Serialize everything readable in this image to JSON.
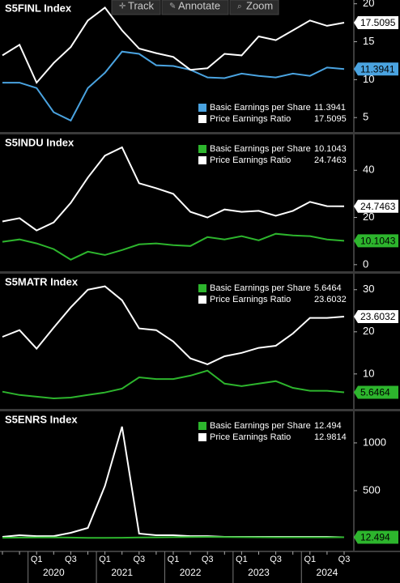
{
  "toolbar": [
    "Track",
    "Annotate",
    "Zoom"
  ],
  "x_axis": {
    "categories": [
      null,
      null,
      "Q1",
      null,
      "Q3",
      null,
      "Q1",
      null,
      "Q3",
      null,
      "Q1",
      null,
      "Q3",
      null,
      "Q1",
      null,
      "Q3",
      null,
      "Q1",
      null,
      "Q3"
    ],
    "years": [
      "2020",
      "2021",
      "2022",
      "2023",
      "2024"
    ]
  },
  "chart_data": [
    {
      "type": "line",
      "title": "S5FINL Index",
      "legend": "lower right",
      "ylim": [
        3.1,
        20.5
      ],
      "yticks": [
        5,
        10,
        15,
        20
      ],
      "series": [
        {
          "name": "Basic Earnings per Share",
          "color": "#4aa3e0",
          "values": [
            9.6,
            9.6,
            8.9,
            5.7,
            4.6,
            8.9,
            10.9,
            13.7,
            13.4,
            11.9,
            11.8,
            11.3,
            10.3,
            10.2,
            10.8,
            10.5,
            10.3,
            10.8,
            10.5,
            11.6,
            11.3941
          ]
        },
        {
          "name": "Price Earnings Ratio",
          "color": "#ffffff",
          "values": [
            13.2,
            14.6,
            9.6,
            12.2,
            14.3,
            17.8,
            19.5,
            16.5,
            14.1,
            13.5,
            13.0,
            11.3,
            11.5,
            13.4,
            13.2,
            15.7,
            15.2,
            16.5,
            17.8,
            17.1,
            17.5095
          ]
        }
      ]
    },
    {
      "type": "line",
      "title": "S5INDU Index",
      "legend": "upper right",
      "ylim": [
        -2.8,
        55.2
      ],
      "yticks": [
        0,
        20,
        40
      ],
      "series": [
        {
          "name": "Basic Earnings per Share",
          "color": "#2db52d",
          "values": [
            9.7,
            10.7,
            9.0,
            6.6,
            2.1,
            5.5,
            4.1,
            6.2,
            8.6,
            9.0,
            8.3,
            7.9,
            11.7,
            10.7,
            12.1,
            10.3,
            13.1,
            12.4,
            12.1,
            10.7,
            10.1043
          ]
        },
        {
          "name": "Price Earnings Ratio",
          "color": "#ffffff",
          "values": [
            18.3,
            19.7,
            14.5,
            17.9,
            26.2,
            36.9,
            46.2,
            49.7,
            34.5,
            32.4,
            30.0,
            22.4,
            20.0,
            23.4,
            22.4,
            22.8,
            20.7,
            22.8,
            26.6,
            24.8,
            24.7463
          ]
        }
      ]
    },
    {
      "type": "line",
      "title": "S5MATR Index",
      "legend": "upper right",
      "ylim": [
        1.7,
        33.8
      ],
      "yticks": [
        10,
        20,
        30
      ],
      "series": [
        {
          "name": "Basic Earnings per Share",
          "color": "#2db52d",
          "values": [
            5.8,
            5.0,
            4.6,
            4.2,
            4.4,
            5.0,
            5.6,
            6.5,
            9.2,
            8.8,
            8.8,
            9.6,
            10.8,
            7.7,
            7.1,
            7.7,
            8.3,
            6.7,
            6.0,
            6.0,
            5.6464
          ]
        },
        {
          "name": "Price Earnings Ratio",
          "color": "#ffffff",
          "values": [
            18.8,
            20.4,
            16.0,
            21.0,
            25.8,
            30.0,
            30.8,
            27.5,
            20.8,
            20.4,
            17.7,
            13.7,
            12.3,
            14.2,
            15.0,
            16.2,
            16.7,
            19.6,
            23.3,
            23.3,
            23.6032
          ]
        }
      ]
    },
    {
      "type": "line",
      "title": "S5ENRS Index",
      "legend": "upper right",
      "ylim": [
        -127,
        1330
      ],
      "yticks": [
        500,
        1000
      ],
      "series": [
        {
          "name": "Price Earnings Ratio",
          "color": "#ffffff",
          "values": [
            17,
            34,
            25,
            25,
            59,
            110,
            550,
            1170,
            51,
            34,
            34,
            25,
            25,
            17,
            17,
            17,
            17,
            17,
            17,
            17,
            12.9814
          ]
        },
        {
          "name": "Basic Earnings per Share",
          "color": "#2db52d",
          "values": [
            8,
            9,
            10,
            12,
            9,
            7,
            6,
            8,
            10,
            12,
            14,
            15,
            16,
            15,
            14,
            13,
            12,
            12,
            12,
            12,
            12.494
          ]
        }
      ]
    }
  ]
}
